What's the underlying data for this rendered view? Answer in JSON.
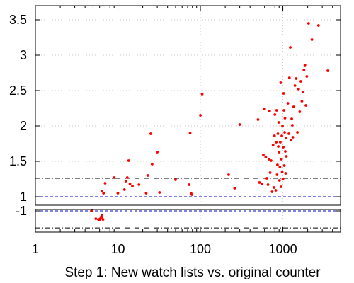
{
  "chart_data": {
    "type": "scatter",
    "xlabel": "Step 1: New watch lists vs. original counter",
    "ylabel": "",
    "title": "",
    "x_scale": "log",
    "xlim": [
      1,
      5000
    ],
    "x_ticks": [
      1,
      10,
      100,
      1000
    ],
    "x_tick_labels": [
      "1",
      "10",
      "100",
      "1000"
    ],
    "y_scale": "linear",
    "y_upper": {
      "ylim": [
        1.0,
        3.7
      ],
      "ticks": [
        1,
        1.5,
        2,
        2.5,
        3,
        3.5
      ],
      "tick_labels": [
        "1",
        "1.5",
        "2",
        "2.5",
        "3",
        "3.5"
      ],
      "grid": true,
      "reference_lines": [
        {
          "y": 1.26,
          "style": "dash-dot"
        },
        {
          "y": 1.0,
          "style": "dashed",
          "color": "#0000cc"
        }
      ]
    },
    "y_lower": {
      "ylim": [
        -1.3,
        -0.95
      ],
      "ticks": [
        -1
      ],
      "tick_labels": [
        "-1"
      ],
      "grid": true,
      "reference_lines": [
        {
          "y": -1.0,
          "style": "dashed",
          "color": "#0000cc"
        },
        {
          "y": -1.26,
          "style": "dash-dot"
        }
      ]
    },
    "point_color": "#ff0000",
    "series": [
      {
        "values_upper": [
          [
            6.4,
            1.08
          ],
          [
            6.7,
            1.05
          ],
          [
            7,
            1.19
          ],
          [
            9,
            1.27
          ],
          [
            10,
            1.05
          ],
          [
            12,
            1.1
          ],
          [
            12.5,
            1.22
          ],
          [
            13,
            1.27
          ],
          [
            13.5,
            1.51
          ],
          [
            14,
            1.18
          ],
          [
            15,
            1.15
          ],
          [
            18,
            1.17
          ],
          [
            22,
            1.05
          ],
          [
            23,
            1.3
          ],
          [
            25,
            1.89
          ],
          [
            26,
            1.46
          ],
          [
            30,
            1.63
          ],
          [
            32,
            1.06
          ],
          [
            50,
            1.24
          ],
          [
            73,
            1.17
          ],
          [
            75,
            1.9
          ],
          [
            77,
            1.05
          ],
          [
            79,
            1.03
          ],
          [
            100,
            2.15
          ],
          [
            105,
            2.45
          ],
          [
            220,
            1.31
          ],
          [
            260,
            1.12
          ],
          [
            300,
            2.02
          ],
          [
            500,
            2.09
          ],
          [
            520,
            1.2
          ],
          [
            560,
            1.18
          ],
          [
            580,
            1.59
          ],
          [
            600,
            2.24
          ],
          [
            620,
            1.56
          ],
          [
            640,
            1.26
          ],
          [
            660,
            1.17
          ],
          [
            680,
            1.53
          ],
          [
            690,
            2.21
          ],
          [
            700,
            1.34
          ],
          [
            720,
            1.51
          ],
          [
            740,
            1.07
          ],
          [
            760,
            1.73
          ],
          [
            780,
            1.13
          ],
          [
            790,
            1.86
          ],
          [
            800,
            2.16
          ],
          [
            820,
            1.09
          ],
          [
            830,
            1.77
          ],
          [
            840,
            2.22
          ],
          [
            850,
            1.31
          ],
          [
            860,
            1.45
          ],
          [
            870,
            1.89
          ],
          [
            880,
            1.71
          ],
          [
            890,
            2.05
          ],
          [
            900,
            1.63
          ],
          [
            910,
            1.23
          ],
          [
            920,
            1.42
          ],
          [
            930,
            1.77
          ],
          [
            940,
            2.61
          ],
          [
            950,
            1.14
          ],
          [
            960,
            1.53
          ],
          [
            970,
            1.86
          ],
          [
            980,
            1.35
          ],
          [
            990,
            2.0
          ],
          [
            1000,
            1.25
          ],
          [
            1010,
            1.7
          ],
          [
            1020,
            2.46
          ],
          [
            1030,
            2.22
          ],
          [
            1040,
            1.44
          ],
          [
            1050,
            1.91
          ],
          [
            1060,
            2.11
          ],
          [
            1070,
            1.64
          ],
          [
            1080,
            1.33
          ],
          [
            1090,
            1.83
          ],
          [
            1100,
            1.57
          ],
          [
            1150,
            2.32
          ],
          [
            1180,
            1.89
          ],
          [
            1200,
            2.68
          ],
          [
            1230,
            3.11
          ],
          [
            1250,
            1.8
          ],
          [
            1280,
            2.1
          ],
          [
            1300,
            2.01
          ],
          [
            1320,
            1.84
          ],
          [
            1350,
            2.27
          ],
          [
            1400,
            2.57
          ],
          [
            1450,
            2.67
          ],
          [
            1500,
            1.91
          ],
          [
            1550,
            2.52
          ],
          [
            1600,
            2.2
          ],
          [
            1650,
            2.63
          ],
          [
            1700,
            2.35
          ],
          [
            1750,
            2.48
          ],
          [
            1800,
            2.79
          ],
          [
            1850,
            2.86
          ],
          [
            1900,
            2.29
          ],
          [
            1950,
            2.7
          ],
          [
            2050,
            3.45
          ],
          [
            2250,
            3.22
          ],
          [
            2700,
            3.42
          ],
          [
            3500,
            2.78
          ]
        ],
        "values_lower": [
          [
            4.8,
            -1.0
          ],
          [
            5.4,
            -1.12
          ],
          [
            5.8,
            -1.13
          ],
          [
            6.0,
            -1.14
          ],
          [
            6.1,
            -1.12
          ],
          [
            6.3,
            -1.1
          ],
          [
            6.4,
            -1.07
          ],
          [
            6.6,
            -1.13
          ]
        ]
      }
    ]
  }
}
